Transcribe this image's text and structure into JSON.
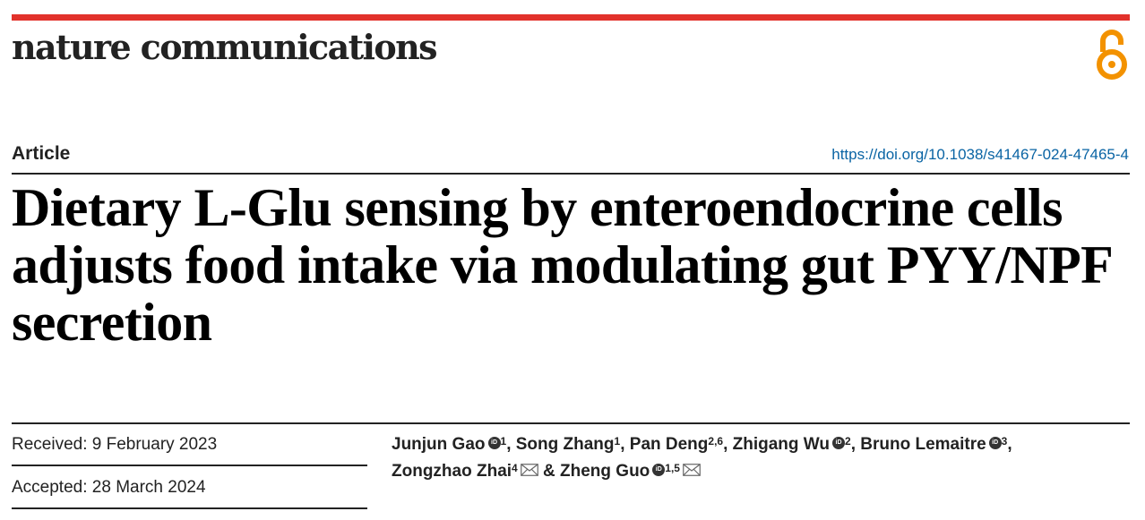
{
  "journal": {
    "name": "nature communications"
  },
  "header": {
    "article_type": "Article",
    "doi": "https://doi.org/10.1038/s41467-024-47465-4"
  },
  "title": "Dietary L-Glu sensing by enteroendocrine cells adjusts food intake via modulating gut PYY/NPF secretion",
  "dates": {
    "received": "Received: 9 February 2023",
    "accepted": "Accepted: 28 March 2024"
  },
  "authors": [
    {
      "name": "Junjun Gao",
      "sup": "1",
      "orcid": true,
      "email": false
    },
    {
      "name": "Song Zhang",
      "sup": "1",
      "orcid": false,
      "email": false
    },
    {
      "name": "Pan Deng",
      "sup": "2,6",
      "orcid": false,
      "email": false
    },
    {
      "name": "Zhigang Wu",
      "sup": "2",
      "orcid": true,
      "email": false
    },
    {
      "name": "Bruno Lemaitre",
      "sup": "3",
      "orcid": true,
      "email": false
    },
    {
      "name": "Zongzhao Zhai",
      "sup": "4",
      "orcid": false,
      "email": true
    },
    {
      "name": "Zheng Guo",
      "sup": "1,5",
      "orcid": true,
      "email": true
    }
  ],
  "separators": {
    "comma": ",",
    "ampersand": "&"
  },
  "icons": {
    "orcid": "orcid-icon",
    "email": "envelope-icon",
    "open_access": "open-access-lock-icon"
  },
  "colors": {
    "accent_bar": "#e2322b",
    "open_access": "#f39200",
    "doi_link": "#0a64a4"
  }
}
